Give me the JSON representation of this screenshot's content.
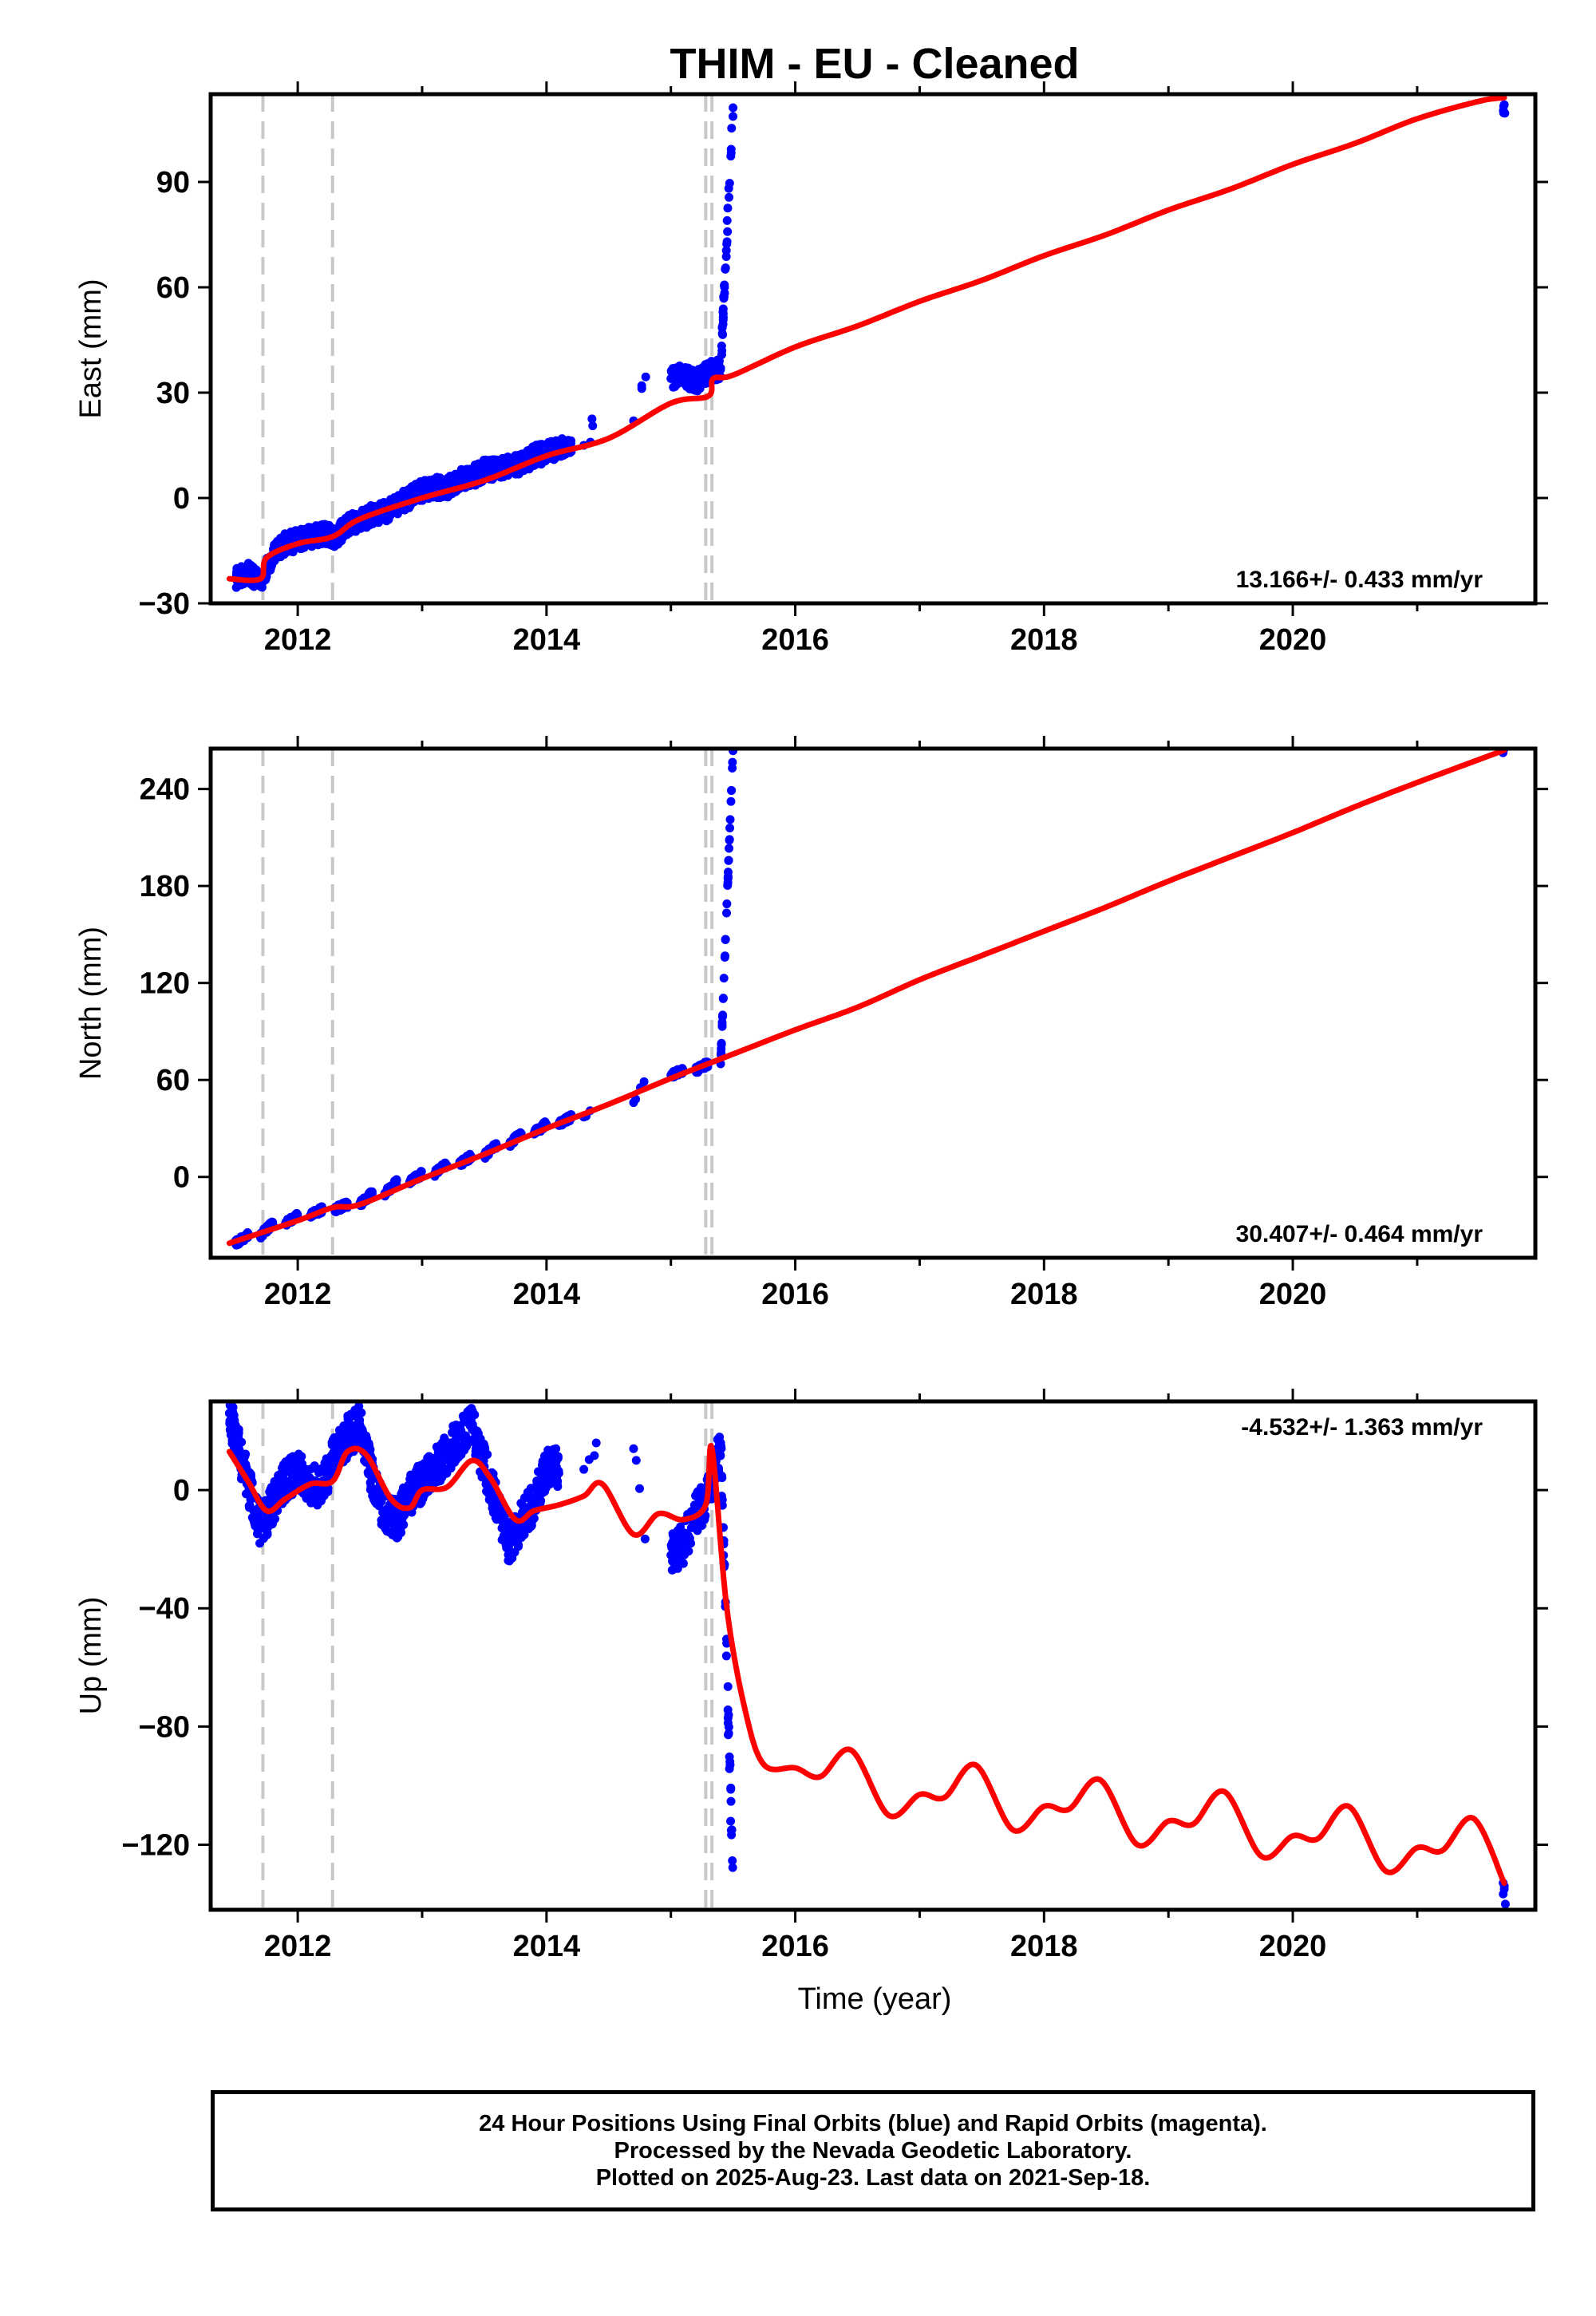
{
  "title": "THIM  - EU - Cleaned",
  "xlabel": "Time (year)",
  "colors": {
    "final_orbits": "#0000ff",
    "model": "#ff0000",
    "offsets": "#c8c8c8"
  },
  "footer": {
    "line1": "24 Hour Positions Using Final Orbits (blue) and Rapid Orbits (magenta).",
    "line2": "Processed by the Nevada Geodetic Laboratory.",
    "line3": "Plotted on 2025-Aug-23. Last data on 2021-Sep-18."
  },
  "chart_data": [
    {
      "type": "scatter",
      "ylabel": "East (mm)",
      "rate_label": "13.166+/- 0.433 mm/yr",
      "xlim": [
        2011.3,
        2021.95
      ],
      "ylim": [
        -30,
        115
      ],
      "xticks": [
        2012,
        2014,
        2016,
        2018,
        2020
      ],
      "yticks": [
        -30,
        0,
        30,
        60,
        90
      ],
      "offset_lines": [
        2011.72,
        2012.28,
        2015.28,
        2015.33
      ],
      "series": [
        {
          "kind": "points",
          "x": [
            2011.5,
            2011.6,
            2011.7,
            2011.8,
            2011.9,
            2012.0,
            2012.1,
            2012.2,
            2012.3,
            2012.4,
            2012.5,
            2012.6,
            2012.7,
            2012.8,
            2012.9,
            2013.0,
            2013.1,
            2013.2,
            2013.3,
            2013.4,
            2013.5,
            2013.6,
            2013.7,
            2013.8,
            2013.9,
            2014.0,
            2014.1,
            2014.3,
            2014.7,
            2015.0,
            2015.1,
            2015.2,
            2015.3,
            2015.4,
            2021.7
          ],
          "y": [
            -23,
            -21,
            -24,
            -16,
            -13,
            -12,
            -11,
            -10,
            -11,
            -8,
            -6,
            -5,
            -4,
            -2,
            0,
            2,
            3,
            3,
            5,
            6,
            8,
            8,
            9,
            10,
            12,
            13,
            14,
            15,
            22,
            34,
            35,
            33,
            36,
            37,
            112
          ]
        },
        {
          "kind": "model",
          "x": [
            2011.45,
            2011.7,
            2011.75,
            2012.0,
            2012.28,
            2012.5,
            2013.0,
            2013.5,
            2014.0,
            2014.5,
            2015.0,
            2015.3,
            2015.34,
            2015.5,
            2016.0,
            2016.5,
            2017.0,
            2017.5,
            2018.0,
            2018.5,
            2019.0,
            2019.5,
            2020.0,
            2020.5,
            2021.0,
            2021.5,
            2021.7
          ],
          "y": [
            -23,
            -23,
            -17,
            -13,
            -11,
            -6,
            0,
            5,
            12,
            17,
            27,
            29,
            34,
            35,
            43,
            49,
            56,
            62,
            69,
            75,
            82,
            88,
            95,
            101,
            108,
            113,
            114
          ]
        }
      ]
    },
    {
      "type": "scatter",
      "ylabel": "North (mm)",
      "rate_label": "30.407+/- 0.464 mm/yr",
      "xlim": [
        2011.3,
        2021.95
      ],
      "ylim": [
        -50,
        265
      ],
      "xticks": [
        2012,
        2014,
        2016,
        2018,
        2020
      ],
      "yticks": [
        0,
        60,
        120,
        180,
        240
      ],
      "offset_lines": [
        2011.72,
        2012.28,
        2015.28,
        2015.33
      ],
      "series": [
        {
          "kind": "points",
          "x": [
            2011.5,
            2011.7,
            2011.9,
            2012.1,
            2012.3,
            2012.5,
            2012.7,
            2012.9,
            2013.1,
            2013.3,
            2013.5,
            2013.7,
            2013.9,
            2014.1,
            2014.3,
            2014.7,
            2015.0,
            2015.2,
            2015.4,
            2021.7
          ],
          "y": [
            -41,
            -36,
            -29,
            -24,
            -20,
            -17,
            -10,
            -3,
            2,
            8,
            13,
            20,
            27,
            33,
            37,
            46,
            63,
            66,
            70,
            265
          ]
        },
        {
          "kind": "model",
          "x": [
            2011.45,
            2012.0,
            2012.28,
            2012.5,
            2013.0,
            2013.5,
            2014.0,
            2014.5,
            2015.0,
            2015.5,
            2016.0,
            2016.5,
            2017.0,
            2017.5,
            2018.0,
            2018.5,
            2019.0,
            2019.5,
            2020.0,
            2020.5,
            2021.0,
            2021.7
          ],
          "y": [
            -41,
            -27,
            -19,
            -17,
            -1,
            14,
            30,
            45,
            61,
            76,
            91,
            105,
            122,
            137,
            152,
            167,
            183,
            198,
            213,
            229,
            244,
            264
          ]
        }
      ]
    },
    {
      "type": "scatter",
      "ylabel": "Up (mm)",
      "rate_label": "-4.532+/- 1.363 mm/yr",
      "xlim": [
        2011.3,
        2021.95
      ],
      "ylim": [
        -142,
        30
      ],
      "xticks": [
        2012,
        2014,
        2016,
        2018,
        2020
      ],
      "yticks": [
        -120,
        -80,
        -40,
        0
      ],
      "offset_lines": [
        2011.72,
        2012.28,
        2015.28,
        2015.33
      ],
      "series": [
        {
          "kind": "points",
          "x": [
            2011.45,
            2011.5,
            2011.6,
            2011.7,
            2011.8,
            2011.9,
            2012.0,
            2012.1,
            2012.2,
            2012.3,
            2012.4,
            2012.5,
            2012.6,
            2012.7,
            2012.8,
            2012.9,
            2013.0,
            2013.1,
            2013.2,
            2013.3,
            2013.4,
            2013.5,
            2013.6,
            2013.7,
            2013.8,
            2013.9,
            2014.0,
            2014.3,
            2014.7,
            2015.0,
            2015.1,
            2015.2,
            2015.3,
            2015.4,
            2021.7
          ],
          "y": [
            26,
            18,
            2,
            -12,
            -5,
            3,
            6,
            2,
            1,
            12,
            18,
            22,
            4,
            -8,
            -10,
            -2,
            3,
            8,
            12,
            18,
            22,
            8,
            -4,
            -18,
            -10,
            -4,
            8,
            7,
            14,
            -22,
            -18,
            -8,
            -2,
            16,
            -135
          ]
        },
        {
          "kind": "model",
          "x": [
            2011.45,
            2011.6,
            2011.75,
            2011.9,
            2012.1,
            2012.28,
            2012.4,
            2012.55,
            2012.75,
            2012.9,
            2013.0,
            2013.2,
            2013.4,
            2013.55,
            2013.75,
            2013.9,
            2014.1,
            2014.3,
            2014.45,
            2014.7,
            2014.9,
            2015.1,
            2015.28,
            2015.33,
            2015.45,
            2015.6,
            2015.75,
            2016.0,
            2016.2,
            2016.45,
            2016.75,
            2017.0,
            2017.2,
            2017.45,
            2017.75,
            2018.0,
            2018.2,
            2018.45,
            2018.75,
            2019.0,
            2019.2,
            2019.45,
            2019.75,
            2020.0,
            2020.2,
            2020.45,
            2020.75,
            2021.0,
            2021.2,
            2021.45,
            2021.7
          ],
          "y": [
            13,
            3,
            -7,
            -3,
            2,
            3,
            13,
            12,
            -3,
            -6,
            0,
            1,
            10,
            4,
            -10,
            -7,
            -5,
            -2,
            2,
            -15,
            -8,
            -10,
            -5,
            14,
            -40,
            -75,
            -93,
            -94,
            -97,
            -88,
            -110,
            -103,
            -104,
            -93,
            -115,
            -107,
            -108,
            -98,
            -120,
            -112,
            -113,
            -102,
            -124,
            -117,
            -118,
            -107,
            -129,
            -121,
            -122,
            -111,
            -133
          ]
        }
      ]
    }
  ]
}
